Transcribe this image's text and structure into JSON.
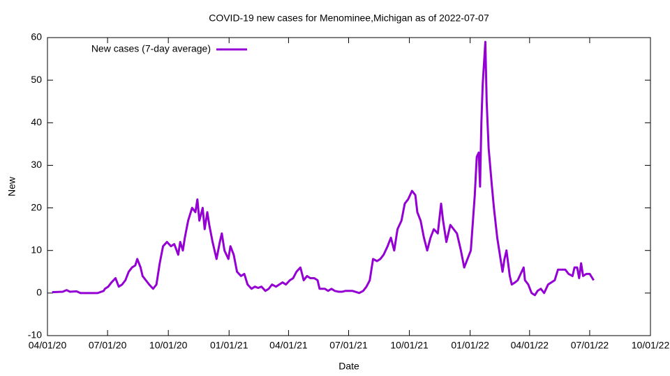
{
  "chart_data": {
    "type": "line",
    "title": "COVID-19 new cases for Menominee,Michigan as of 2022-07-07",
    "x_label": "Date",
    "y_label": "New",
    "legend_position": "top left",
    "xlim": [
      "2020-04-01",
      "2022-10-01"
    ],
    "xticks": [
      {
        "value": "2020-04-01",
        "label": "04/01/20"
      },
      {
        "value": "2020-07-01",
        "label": "07/01/20"
      },
      {
        "value": "2020-10-01",
        "label": "10/01/20"
      },
      {
        "value": "2021-01-01",
        "label": "01/01/21"
      },
      {
        "value": "2021-04-01",
        "label": "04/01/21"
      },
      {
        "value": "2021-07-01",
        "label": "07/01/21"
      },
      {
        "value": "2021-10-01",
        "label": "10/01/21"
      },
      {
        "value": "2022-01-01",
        "label": "01/01/22"
      },
      {
        "value": "2022-04-01",
        "label": "04/01/22"
      },
      {
        "value": "2022-07-01",
        "label": "07/01/22"
      },
      {
        "value": "2022-10-01",
        "label": "10/01/22"
      }
    ],
    "ylim": [
      -10,
      60
    ],
    "yticks": [
      -10,
      0,
      10,
      20,
      30,
      40,
      50,
      60
    ],
    "x": [
      "2020-04-08",
      "2020-04-24",
      "2020-04-30",
      "2020-05-05",
      "2020-05-15",
      "2020-05-21",
      "2020-06-16",
      "2020-06-25",
      "2020-06-27",
      "2020-07-02",
      "2020-07-07",
      "2020-07-13",
      "2020-07-18",
      "2020-07-23",
      "2020-07-28",
      "2020-08-02",
      "2020-08-07",
      "2020-08-12",
      "2020-08-15",
      "2020-08-20",
      "2020-08-23",
      "2020-08-28",
      "2020-09-02",
      "2020-09-08",
      "2020-09-13",
      "2020-09-18",
      "2020-09-23",
      "2020-09-29",
      "2020-10-05",
      "2020-10-10",
      "2020-10-16",
      "2020-10-19",
      "2020-10-23",
      "2020-10-26",
      "2020-10-31",
      "2020-11-06",
      "2020-11-11",
      "2020-11-14",
      "2020-11-17",
      "2020-11-22",
      "2020-11-25",
      "2020-11-29",
      "2020-12-02",
      "2020-12-07",
      "2020-12-13",
      "2020-12-18",
      "2020-12-21",
      "2020-12-25",
      "2020-12-31",
      "2021-01-03",
      "2021-01-08",
      "2021-01-13",
      "2021-01-19",
      "2021-01-24",
      "2021-01-29",
      "2021-02-04",
      "2021-02-09",
      "2021-02-14",
      "2021-02-19",
      "2021-02-25",
      "2021-03-02",
      "2021-03-07",
      "2021-03-13",
      "2021-03-18",
      "2021-03-23",
      "2021-03-28",
      "2021-04-03",
      "2021-04-08",
      "2021-04-13",
      "2021-04-19",
      "2021-04-24",
      "2021-04-29",
      "2021-05-04",
      "2021-05-10",
      "2021-05-15",
      "2021-05-18",
      "2021-05-26",
      "2021-05-31",
      "2021-06-05",
      "2021-06-10",
      "2021-06-16",
      "2021-06-21",
      "2021-06-26",
      "2021-07-01",
      "2021-07-07",
      "2021-07-17",
      "2021-07-23",
      "2021-07-28",
      "2021-08-02",
      "2021-08-07",
      "2021-08-13",
      "2021-08-18",
      "2021-08-23",
      "2021-08-29",
      "2021-09-03",
      "2021-09-08",
      "2021-09-13",
      "2021-09-19",
      "2021-09-24",
      "2021-09-29",
      "2021-10-05",
      "2021-10-10",
      "2021-10-13",
      "2021-10-18",
      "2021-10-23",
      "2021-10-28",
      "2021-11-02",
      "2021-11-07",
      "2021-11-13",
      "2021-11-18",
      "2021-11-21",
      "2021-11-26",
      "2021-12-02",
      "2021-12-07",
      "2021-12-12",
      "2021-12-18",
      "2021-12-23",
      "2021-12-28",
      "2022-01-02",
      "2022-01-08",
      "2022-01-11",
      "2022-01-14",
      "2022-01-16",
      "2022-01-18",
      "2022-01-20",
      "2022-01-24",
      "2022-01-26",
      "2022-01-29",
      "2022-02-03",
      "2022-02-06",
      "2022-02-11",
      "2022-02-14",
      "2022-02-17",
      "2022-02-19",
      "2022-02-22",
      "2022-02-25",
      "2022-03-02",
      "2022-03-05",
      "2022-03-10",
      "2022-03-14",
      "2022-03-17",
      "2022-03-23",
      "2022-03-25",
      "2022-03-30",
      "2022-04-04",
      "2022-04-09",
      "2022-04-13",
      "2022-04-18",
      "2022-04-23",
      "2022-04-29",
      "2022-05-04",
      "2022-05-09",
      "2022-05-14",
      "2022-05-20",
      "2022-05-25",
      "2022-05-30",
      "2022-06-05",
      "2022-06-08",
      "2022-06-12",
      "2022-06-15",
      "2022-06-18",
      "2022-06-21",
      "2022-06-26",
      "2022-07-01",
      "2022-07-07"
    ],
    "series": [
      {
        "name": "New cases (7-day average)",
        "color": "#9400d3",
        "values": [
          0.2,
          0.3,
          0.7,
          0.3,
          0.4,
          0,
          0,
          0.5,
          1,
          1.5,
          2.5,
          3.5,
          1.5,
          2,
          3,
          5,
          6,
          6.5,
          8,
          6,
          4,
          3,
          2,
          1,
          2,
          7,
          11,
          12,
          11,
          11.5,
          9,
          12,
          10,
          13,
          17,
          20,
          19,
          22,
          17,
          20,
          15,
          19,
          16,
          12,
          8,
          12,
          14,
          10,
          8,
          11,
          9,
          5,
          4,
          4.5,
          2,
          1,
          1.5,
          1.2,
          1.5,
          0.5,
          1,
          2,
          1.5,
          2,
          2.5,
          2,
          3,
          3.5,
          5,
          6,
          3,
          4,
          3.5,
          3.5,
          3,
          1,
          1,
          0.5,
          1,
          0.5,
          0.3,
          0.3,
          0.5,
          0.5,
          0.5,
          0,
          0.5,
          1.5,
          3,
          8,
          7.5,
          8,
          9,
          11,
          13,
          10,
          15,
          17,
          21,
          22,
          24,
          23,
          19,
          17,
          13,
          10,
          13,
          15,
          14,
          21,
          17,
          12,
          16,
          15,
          14,
          10,
          6,
          8,
          10,
          23,
          32,
          33,
          25,
          40,
          49,
          59,
          45,
          34,
          25,
          20,
          13,
          10,
          7,
          5,
          8,
          10,
          4,
          2,
          2.5,
          3,
          4,
          6,
          3,
          2,
          0,
          -0.5,
          0.5,
          1,
          0,
          2,
          2.5,
          3,
          5.5,
          5.5,
          5.5,
          4.5,
          4,
          6,
          6,
          3.5,
          7,
          4,
          4.5,
          4.5,
          3
        ]
      }
    ]
  }
}
